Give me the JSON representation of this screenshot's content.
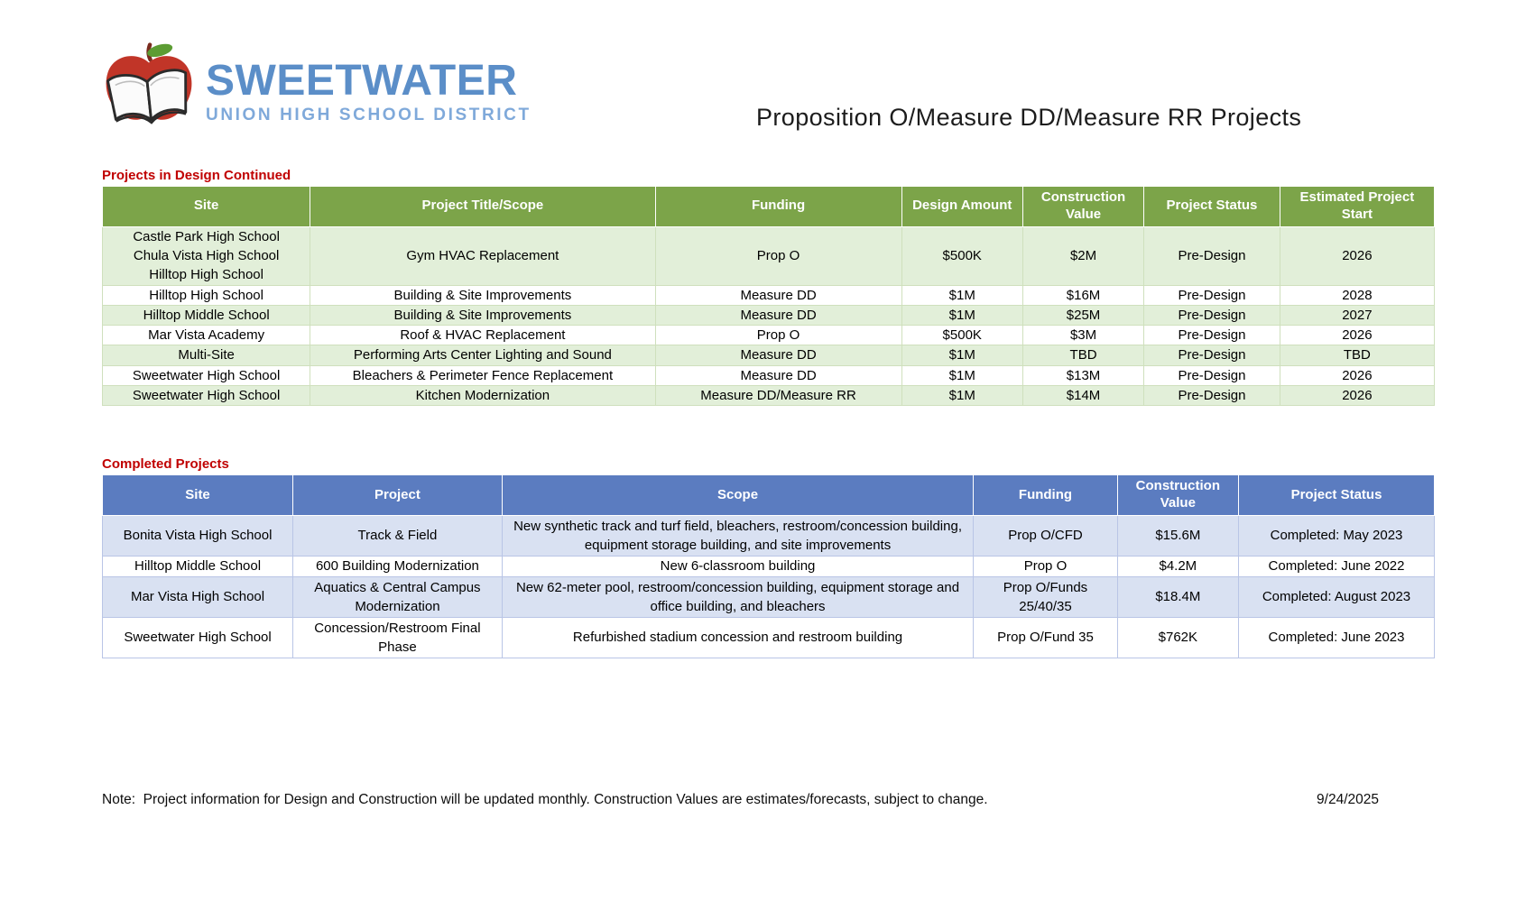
{
  "logo": {
    "title": "SWEETWATER",
    "subtitle": "UNION HIGH SCHOOL DISTRICT"
  },
  "page_title": "Proposition O/Measure DD/Measure RR Projects",
  "colors": {
    "design_header_green": "#7ca449",
    "design_row_green": "#e2efd9",
    "completed_header_blue": "#5b7cc0",
    "completed_row_blue": "#d9e1f2",
    "section_title_red": "#c00000",
    "logo_blue": "#5b8ec8"
  },
  "design_table": {
    "section_title": "Projects in Design Continued",
    "headers": [
      "Site",
      "Project Title/Scope",
      "Funding",
      "Design Amount",
      "Construction Value",
      "Project Status",
      "Estimated Project Start"
    ],
    "rows": [
      [
        "Castle Park High School\nChula Vista High School\nHilltop High School",
        "Gym HVAC Replacement",
        "Prop O",
        "$500K",
        "$2M",
        "Pre-Design",
        "2026"
      ],
      [
        "Hilltop High School",
        "Building & Site Improvements",
        "Measure DD",
        "$1M",
        "$16M",
        "Pre-Design",
        "2028"
      ],
      [
        "Hilltop Middle School",
        "Building & Site Improvements",
        "Measure DD",
        "$1M",
        "$25M",
        "Pre-Design",
        "2027"
      ],
      [
        "Mar Vista Academy",
        "Roof & HVAC Replacement",
        "Prop O",
        "$500K",
        "$3M",
        "Pre-Design",
        "2026"
      ],
      [
        "Multi-Site",
        "Performing Arts Center Lighting and Sound",
        "Measure DD",
        "$1M",
        "TBD",
        "Pre-Design",
        "TBD"
      ],
      [
        "Sweetwater High School",
        "Bleachers & Perimeter Fence Replacement",
        "Measure DD",
        "$1M",
        "$13M",
        "Pre-Design",
        "2026"
      ],
      [
        "Sweetwater High School",
        "Kitchen Modernization",
        "Measure DD/Measure RR",
        "$1M",
        "$14M",
        "Pre-Design",
        "2026"
      ]
    ]
  },
  "completed_table": {
    "section_title": "Completed Projects",
    "headers": [
      "Site",
      "Project",
      "Scope",
      "Funding",
      "Construction Value",
      "Project Status"
    ],
    "rows": [
      [
        "Bonita Vista High School",
        "Track & Field",
        "New synthetic track and turf field, bleachers, restroom/concession building, equipment storage building, and site improvements",
        "Prop O/CFD",
        "$15.6M",
        "Completed: May 2023"
      ],
      [
        "Hilltop Middle School",
        "600 Building Modernization",
        "New 6-classroom building",
        "Prop O",
        "$4.2M",
        "Completed: June 2022"
      ],
      [
        "Mar Vista High School",
        "Aquatics & Central Campus Modernization",
        "New 62-meter pool, restroom/concession building, equipment storage and office building, and bleachers",
        "Prop O/Funds 25/40/35",
        "$18.4M",
        "Completed: August 2023"
      ],
      [
        "Sweetwater High School",
        "Concession/Restroom Final Phase",
        "Refurbished stadium concession and restroom building",
        "Prop O/Fund 35",
        "$762K",
        "Completed: June 2023"
      ]
    ]
  },
  "footer": {
    "note": "Note:  Project information for Design and Construction will be updated monthly. Construction Values are estimates/forecasts, subject to change.",
    "date": "9/24/2025"
  }
}
